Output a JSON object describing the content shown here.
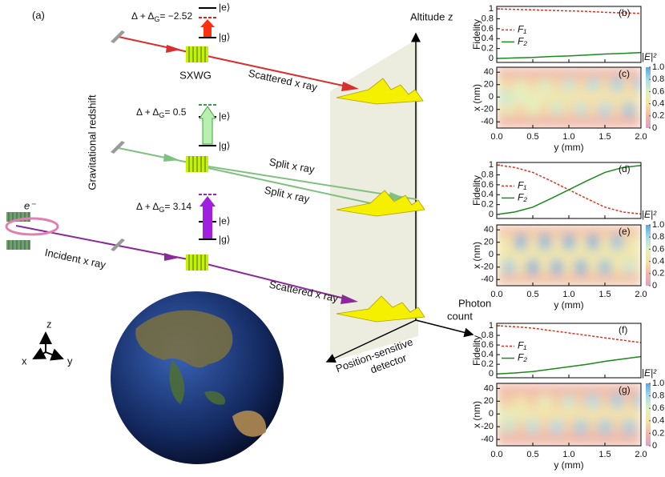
{
  "diagram": {
    "panel_label": "(a)",
    "levels": [
      {
        "prefix": "Δ + Δ",
        "sub": "G",
        "value": "= −2.52",
        "e": "|e⟩",
        "g": "|g⟩"
      },
      {
        "prefix": "Δ + Δ",
        "sub": "G",
        "value": "= 0.5",
        "e": "|e⟩",
        "g": "|g⟩"
      },
      {
        "prefix": "Δ + Δ",
        "sub": "G",
        "value": "= 3.14",
        "e": "|e⟩",
        "g": "|g⟩"
      }
    ],
    "grating": "SXWG",
    "beams": {
      "scattered_top": "Scattered x ray",
      "split_1": "Split x ray",
      "split_2": "Split x ray",
      "incident": "Incident x ray",
      "scattered_bottom": "Scattered x ray"
    },
    "redshift": "Gravitational redshift",
    "altitude": "Altitude z",
    "photon_count": [
      "Photon",
      "count"
    ],
    "detector": [
      "Position-sensitive",
      "detector"
    ],
    "electron": "e⁻",
    "axes": {
      "z": "z",
      "x": "x",
      "y": "y"
    }
  },
  "chart_data": [
    {
      "type": "line",
      "panel_label": "(b)",
      "ylabel": "Fidelity",
      "x": [
        0,
        0.25,
        0.5,
        0.75,
        1,
        1.25,
        1.5,
        1.75,
        2
      ],
      "series": [
        {
          "name": "F₁",
          "color": "#e0301e",
          "linestyle": "dashed",
          "values": [
            1,
            0.99,
            0.98,
            0.97,
            0.96,
            0.95,
            0.93,
            0.92,
            0.91
          ]
        },
        {
          "name": "F₂",
          "color": "#1a8a1a",
          "linestyle": "solid",
          "values": [
            0,
            0.01,
            0.02,
            0.04,
            0.05,
            0.07,
            0.09,
            0.1,
            0.12
          ]
        }
      ],
      "xlim": [
        0,
        2
      ],
      "xticks": [
        0,
        0.5,
        1,
        1.5,
        2
      ],
      "ylim": [
        -0.08,
        1.05
      ],
      "yticks": [
        0,
        0.2,
        0.4,
        0.6,
        0.8,
        1
      ]
    },
    {
      "type": "heatmap",
      "panel_label": "(c)",
      "xlabel": "y (mm)",
      "ylabel": "x (nm)",
      "x": [
        0,
        0.17,
        0.33,
        0.5,
        0.67,
        0.83,
        1,
        1.17,
        1.33,
        1.5,
        1.67,
        1.83,
        2
      ],
      "y": [
        40,
        20,
        0,
        -20,
        -40
      ],
      "z": [
        [
          0.2,
          0.2,
          0.2,
          0.2,
          0.2,
          0.2,
          0.2,
          0.2,
          0.2,
          0.2,
          0.2,
          0.2,
          0.2
        ],
        [
          0.5,
          0.35,
          0.57,
          0.35,
          0.63,
          0.35,
          0.7,
          0.35,
          0.77,
          0.35,
          0.83,
          0.35,
          0.9
        ],
        [
          0.7,
          0.65,
          0.6,
          0.55,
          0.5,
          0.45,
          0.45,
          0.4,
          0.4,
          0.4,
          0.4,
          0.4,
          0.4
        ],
        [
          0.35,
          0.53,
          0.35,
          0.6,
          0.35,
          0.67,
          0.35,
          0.73,
          0.35,
          0.8,
          0.35,
          0.87,
          0.35
        ],
        [
          0.2,
          0.2,
          0.2,
          0.2,
          0.2,
          0.2,
          0.2,
          0.2,
          0.2,
          0.2,
          0.2,
          0.2,
          0.2
        ]
      ],
      "xlim": [
        0,
        2
      ],
      "xticks": [
        {
          "value": 0,
          "label": "0.0"
        },
        0.5,
        {
          "value": 1,
          "label": "1.0"
        },
        1.5,
        {
          "value": 2,
          "label": "2.0"
        }
      ],
      "ylim": [
        -50,
        48
      ],
      "yticks": [
        -40,
        -20,
        0,
        20,
        40
      ],
      "colorbar": {
        "title": "|E|²",
        "lim": [
          0,
          1
        ],
        "ticks": [
          0,
          0.2,
          0.4,
          0.6,
          0.8,
          {
            "value": 1,
            "label": "1.0"
          }
        ]
      },
      "colorscale": [
        "#d9a3c9",
        "#f0b8a8",
        "#f6e3a8",
        "#e3f0c0",
        "#a8dcea",
        "#5aa5dc"
      ]
    },
    {
      "type": "line",
      "panel_label": "(d)",
      "ylabel": "Fidelity",
      "x": [
        0,
        0.25,
        0.5,
        0.75,
        1,
        1.25,
        1.5,
        1.75,
        2
      ],
      "series": [
        {
          "name": "F₁",
          "color": "#e0301e",
          "linestyle": "dashed",
          "values": [
            1,
            0.95,
            0.85,
            0.68,
            0.5,
            0.32,
            0.15,
            0.05,
            0.01
          ]
        },
        {
          "name": "F₂",
          "color": "#1a8a1a",
          "linestyle": "solid",
          "values": [
            0,
            0.05,
            0.15,
            0.32,
            0.5,
            0.68,
            0.85,
            0.95,
            0.99
          ]
        }
      ],
      "xlim": [
        0,
        2
      ],
      "xticks": [
        0,
        0.5,
        1,
        1.5,
        2
      ],
      "ylim": [
        -0.08,
        1.05
      ],
      "yticks": [
        0,
        0.2,
        0.4,
        0.6,
        0.8,
        1
      ]
    },
    {
      "type": "heatmap",
      "panel_label": "(e)",
      "xlabel": "y (mm)",
      "ylabel": "x (nm)",
      "x": [
        0,
        0.17,
        0.33,
        0.5,
        0.67,
        0.83,
        1,
        1.17,
        1.33,
        1.5,
        1.67,
        1.83,
        2
      ],
      "y": [
        40,
        20,
        0,
        -20,
        -40
      ],
      "z": [
        [
          0.25,
          0.25,
          0.25,
          0.25,
          0.25,
          0.25,
          0.25,
          0.25,
          0.25,
          0.25,
          0.25,
          0.25,
          0.25
        ],
        [
          0.5,
          0.4,
          0.95,
          0.4,
          0.95,
          0.4,
          0.95,
          0.4,
          0.95,
          0.4,
          0.9,
          0.4,
          0.6
        ],
        [
          0.45,
          0.45,
          0.45,
          0.45,
          0.45,
          0.45,
          0.45,
          0.45,
          0.45,
          0.45,
          0.45,
          0.45,
          0.45
        ],
        [
          0.4,
          0.85,
          0.4,
          0.95,
          0.4,
          0.95,
          0.4,
          0.95,
          0.4,
          0.9,
          0.4,
          0.7,
          0.4
        ],
        [
          0.25,
          0.25,
          0.25,
          0.25,
          0.25,
          0.25,
          0.25,
          0.25,
          0.25,
          0.25,
          0.25,
          0.25,
          0.25
        ]
      ],
      "xlim": [
        0,
        2
      ],
      "xticks": [
        {
          "value": 0,
          "label": "0.0"
        },
        0.5,
        {
          "value": 1,
          "label": "1.0"
        },
        1.5,
        {
          "value": 2,
          "label": "2.0"
        }
      ],
      "ylim": [
        -50,
        48
      ],
      "yticks": [
        -40,
        -20,
        0,
        20,
        40
      ],
      "colorbar": {
        "title": "|E|²",
        "lim": [
          0,
          1
        ],
        "ticks": [
          0,
          0.2,
          0.4,
          0.6,
          0.8,
          {
            "value": 1,
            "label": "1.0"
          }
        ]
      },
      "colorscale": [
        "#d9a3c9",
        "#f0b8a8",
        "#f6e3a8",
        "#e3f0c0",
        "#a8dcea",
        "#5aa5dc"
      ]
    },
    {
      "type": "line",
      "panel_label": "(f)",
      "ylabel": "Fidelity",
      "x": [
        0,
        0.25,
        0.5,
        0.75,
        1,
        1.25,
        1.5,
        1.75,
        2
      ],
      "series": [
        {
          "name": "F₁",
          "color": "#e0301e",
          "linestyle": "dashed",
          "values": [
            1,
            0.98,
            0.95,
            0.9,
            0.85,
            0.8,
            0.75,
            0.7,
            0.65
          ]
        },
        {
          "name": "F₂",
          "color": "#1a8a1a",
          "linestyle": "solid",
          "values": [
            0,
            0.02,
            0.05,
            0.1,
            0.15,
            0.2,
            0.26,
            0.31,
            0.36
          ]
        }
      ],
      "xlim": [
        0,
        2
      ],
      "xticks": [
        0,
        0.5,
        1,
        1.5,
        2
      ],
      "ylim": [
        -0.08,
        1.05
      ],
      "yticks": [
        0,
        0.2,
        0.4,
        0.6,
        0.8,
        1
      ]
    },
    {
      "type": "heatmap",
      "panel_label": "(g)",
      "xlabel": "y (mm)",
      "ylabel": "x (nm)",
      "x": [
        0,
        0.17,
        0.33,
        0.5,
        0.67,
        0.83,
        1,
        1.17,
        1.33,
        1.5,
        1.67,
        1.83,
        2
      ],
      "y": [
        40,
        20,
        0,
        -20,
        -40
      ],
      "z": [
        [
          0.2,
          0.2,
          0.2,
          0.2,
          0.2,
          0.2,
          0.2,
          0.2,
          0.2,
          0.2,
          0.2,
          0.2,
          0.2
        ],
        [
          0.3,
          0.3,
          0.45,
          0.3,
          0.6,
          0.3,
          0.7,
          0.3,
          0.8,
          0.3,
          0.85,
          0.3,
          0.9
        ],
        [
          0.6,
          0.55,
          0.5,
          0.45,
          0.4,
          0.4,
          0.4,
          0.4,
          0.4,
          0.4,
          0.4,
          0.4,
          0.4
        ],
        [
          0.3,
          0.7,
          0.3,
          0.75,
          0.3,
          0.8,
          0.3,
          0.85,
          0.3,
          0.85,
          0.3,
          0.85,
          0.3
        ],
        [
          0.2,
          0.2,
          0.2,
          0.2,
          0.2,
          0.2,
          0.2,
          0.2,
          0.2,
          0.2,
          0.2,
          0.2,
          0.2
        ]
      ],
      "xlim": [
        0,
        2
      ],
      "xticks": [
        {
          "value": 0,
          "label": "0.0"
        },
        0.5,
        {
          "value": 1,
          "label": "1.0"
        },
        1.5,
        {
          "value": 2,
          "label": "2.0"
        }
      ],
      "ylim": [
        -50,
        48
      ],
      "yticks": [
        -40,
        -20,
        0,
        20,
        40
      ],
      "colorbar": {
        "title": "|E|²",
        "lim": [
          0,
          1
        ],
        "ticks": [
          0,
          0.2,
          0.4,
          0.6,
          0.8,
          {
            "value": 1,
            "label": "1.0"
          }
        ]
      },
      "colorscale": [
        "#d9a3c9",
        "#f0b8a8",
        "#f6e3a8",
        "#e3f0c0",
        "#a8dcea",
        "#5aa5dc"
      ]
    }
  ]
}
